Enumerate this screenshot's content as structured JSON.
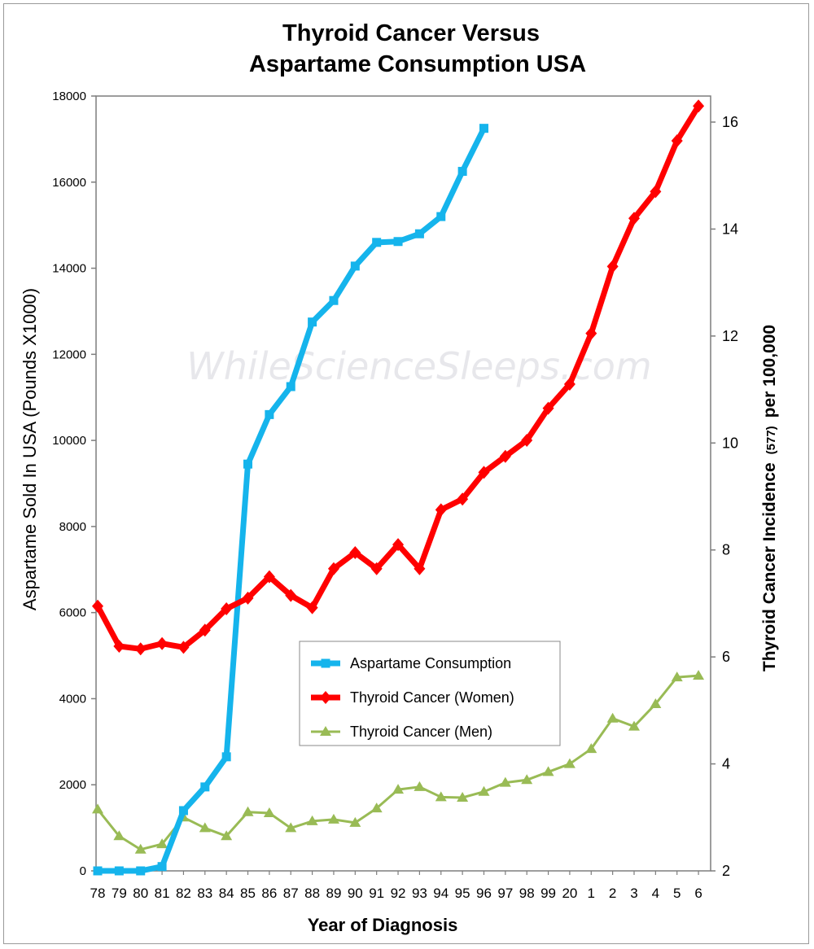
{
  "watermark": "WhileScienceSleeps.com",
  "chart_data": {
    "type": "line",
    "title_line1": "Thyroid Cancer Versus",
    "title_line2": "Aspartame Consumption USA",
    "xlabel": "Year of Diagnosis",
    "ylabel": "Aspartame Sold In USA  (Pounds X1000)",
    "y2label_main": "Thyroid Cancer Incidence",
    "y2label_small": "(577)",
    "y2label_end": "per 100,000",
    "categories": [
      "78",
      "79",
      "80",
      "81",
      "82",
      "83",
      "84",
      "85",
      "86",
      "87",
      "88",
      "89",
      "90",
      "91",
      "92",
      "93",
      "94",
      "95",
      "96",
      "97",
      "98",
      "99",
      "20",
      "1",
      "2",
      "3",
      "4",
      "5",
      "6"
    ],
    "ylim": [
      0,
      18000
    ],
    "yticks": [
      "0",
      "2000",
      "4000",
      "6000",
      "8000",
      "10000",
      "12000",
      "14000",
      "16000",
      "18000"
    ],
    "y2lim": [
      2,
      16.5
    ],
    "y2ticks": [
      "2",
      "4",
      "6",
      "8",
      "10",
      "12",
      "14",
      "16"
    ],
    "legend_position": "center",
    "series": [
      {
        "name": "Aspartame Consumption",
        "axis": "left",
        "color": "#15b4ec",
        "marker": "square",
        "values": [
          0,
          0,
          0,
          100,
          1400,
          1950,
          2650,
          9450,
          10600,
          11250,
          12750,
          13250,
          14050,
          14600,
          14620,
          14800,
          15200,
          16250,
          17250,
          null,
          null,
          null,
          null,
          null,
          null,
          null,
          null,
          null,
          null
        ]
      },
      {
        "name": "Thyroid Cancer (Women)",
        "axis": "right",
        "color": "#ff0000",
        "marker": "diamond",
        "values": [
          6.95,
          6.2,
          6.15,
          6.25,
          6.18,
          6.5,
          6.9,
          7.1,
          7.5,
          7.15,
          6.92,
          7.65,
          7.95,
          7.65,
          8.1,
          7.65,
          8.75,
          8.95,
          9.45,
          9.75,
          10.05,
          10.65,
          11.1,
          12.05,
          13.3,
          14.2,
          14.7,
          15.65,
          16.3
        ]
      },
      {
        "name": "Thyroid Cancer (Men)",
        "axis": "right",
        "color": "#99bb55",
        "marker": "triangle",
        "values": [
          3.15,
          2.65,
          2.4,
          2.5,
          3.0,
          2.8,
          2.65,
          3.1,
          3.08,
          2.8,
          2.93,
          2.96,
          2.9,
          3.17,
          3.52,
          3.57,
          3.38,
          3.37,
          3.48,
          3.65,
          3.7,
          3.85,
          4.0,
          4.28,
          4.85,
          4.7,
          5.12,
          5.62,
          5.65
        ]
      }
    ]
  }
}
